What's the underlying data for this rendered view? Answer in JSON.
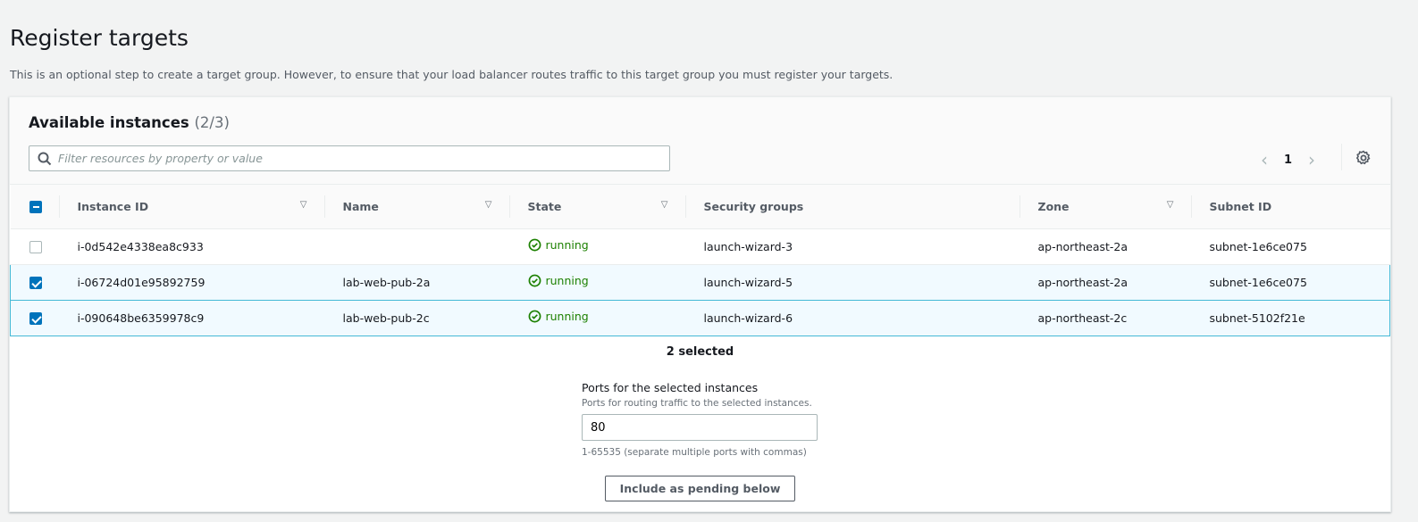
{
  "page": {
    "title": "Register targets",
    "description": "This is an optional step to create a target group. However, to ensure that your load balancer routes traffic to this target group you must register your targets."
  },
  "panel": {
    "title": "Available instances",
    "count": "(2/3)",
    "search_placeholder": "Filter resources by property or value",
    "page": "1"
  },
  "table": {
    "columns": [
      "Instance ID",
      "Name",
      "State",
      "Security groups",
      "Zone",
      "Subnet ID"
    ],
    "rows": [
      {
        "selected": false,
        "id": "i-0d542e4338ea8c933",
        "name": "",
        "state": "running",
        "sg": "launch-wizard-3",
        "zone": "ap-northeast-2a",
        "subnet": "subnet-1e6ce075"
      },
      {
        "selected": true,
        "id": "i-06724d01e95892759",
        "name": "lab-web-pub-2a",
        "state": "running",
        "sg": "launch-wizard-5",
        "zone": "ap-northeast-2a",
        "subnet": "subnet-1e6ce075"
      },
      {
        "selected": true,
        "id": "i-090648be6359978c9",
        "name": "lab-web-pub-2c",
        "state": "running",
        "sg": "launch-wizard-6",
        "zone": "ap-northeast-2c",
        "subnet": "subnet-5102f21e"
      }
    ]
  },
  "ports": {
    "selected_count": "2 selected",
    "label": "Ports for the selected instances",
    "help": "Ports for routing traffic to the selected instances.",
    "value": "80",
    "hint": "1-65535 (separate multiple ports with commas)",
    "button": "Include as pending below"
  },
  "colors": {
    "accent": "#0073bb",
    "running": "#1d8102",
    "selected_border": "#44b9d6"
  }
}
